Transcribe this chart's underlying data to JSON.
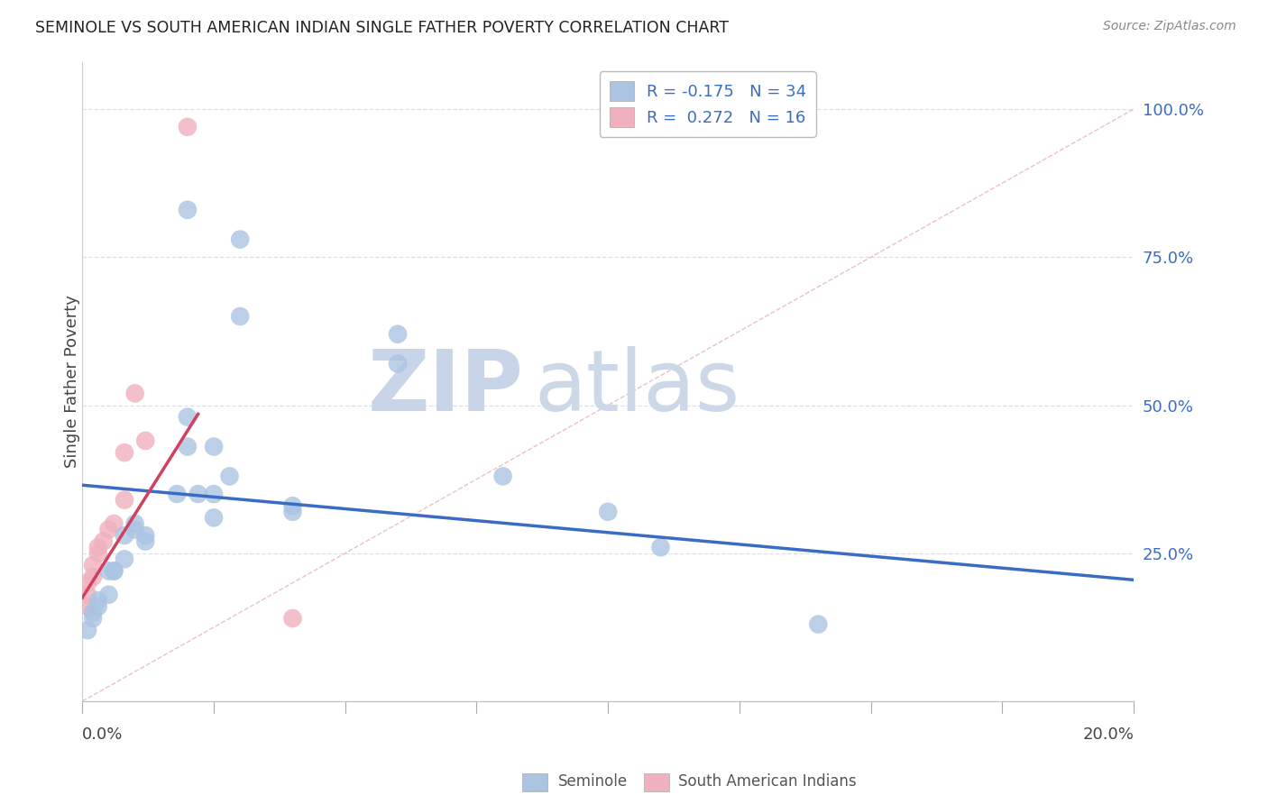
{
  "title": "SEMINOLE VS SOUTH AMERICAN INDIAN SINGLE FATHER POVERTY CORRELATION CHART",
  "source": "Source: ZipAtlas.com",
  "ylabel": "Single Father Poverty",
  "ytick_labels": [
    "25.0%",
    "50.0%",
    "75.0%",
    "100.0%"
  ],
  "ytick_values": [
    0.25,
    0.5,
    0.75,
    1.0
  ],
  "xlim": [
    0.0,
    0.2
  ],
  "ylim": [
    0.0,
    1.08
  ],
  "legend_blue_r": "R = -0.175",
  "legend_blue_n": "N = 34",
  "legend_pink_r": "R =  0.272",
  "legend_pink_n": "N = 16",
  "seminole_color": "#aac4e2",
  "south_american_color": "#f0b0be",
  "trendline_blue": "#3b6cc5",
  "trendline_pink": "#d04060",
  "diagonal_color": "#e0b8b8",
  "watermark_zip_color": "#c8d8ec",
  "watermark_atlas_color": "#c8d8ec",
  "background_color": "#ffffff",
  "grid_color": "#dde0ea",
  "seminole_x": [
    0.02,
    0.03,
    0.03,
    0.06,
    0.06,
    0.02,
    0.02,
    0.025,
    0.028,
    0.025,
    0.018,
    0.022,
    0.025,
    0.04,
    0.04,
    0.01,
    0.01,
    0.008,
    0.012,
    0.012,
    0.008,
    0.006,
    0.006,
    0.005,
    0.005,
    0.003,
    0.003,
    0.002,
    0.002,
    0.001,
    0.08,
    0.1,
    0.11,
    0.14
  ],
  "seminole_y": [
    0.83,
    0.78,
    0.65,
    0.62,
    0.57,
    0.48,
    0.43,
    0.43,
    0.38,
    0.35,
    0.35,
    0.35,
    0.31,
    0.33,
    0.32,
    0.3,
    0.29,
    0.28,
    0.28,
    0.27,
    0.24,
    0.22,
    0.22,
    0.22,
    0.18,
    0.17,
    0.16,
    0.15,
    0.14,
    0.12,
    0.38,
    0.32,
    0.26,
    0.13
  ],
  "south_american_x": [
    0.02,
    0.01,
    0.012,
    0.008,
    0.008,
    0.006,
    0.005,
    0.004,
    0.003,
    0.003,
    0.002,
    0.002,
    0.001,
    0.001,
    0.001,
    0.04
  ],
  "south_american_y": [
    0.97,
    0.52,
    0.44,
    0.42,
    0.34,
    0.3,
    0.29,
    0.27,
    0.26,
    0.25,
    0.23,
    0.21,
    0.2,
    0.18,
    0.16,
    0.14
  ],
  "trendline_blue_x0": 0.0,
  "trendline_blue_y0": 0.365,
  "trendline_blue_x1": 0.2,
  "trendline_blue_y1": 0.205,
  "trendline_pink_x0": 0.0,
  "trendline_pink_y0": 0.175,
  "trendline_pink_x1": 0.022,
  "trendline_pink_y1": 0.485
}
